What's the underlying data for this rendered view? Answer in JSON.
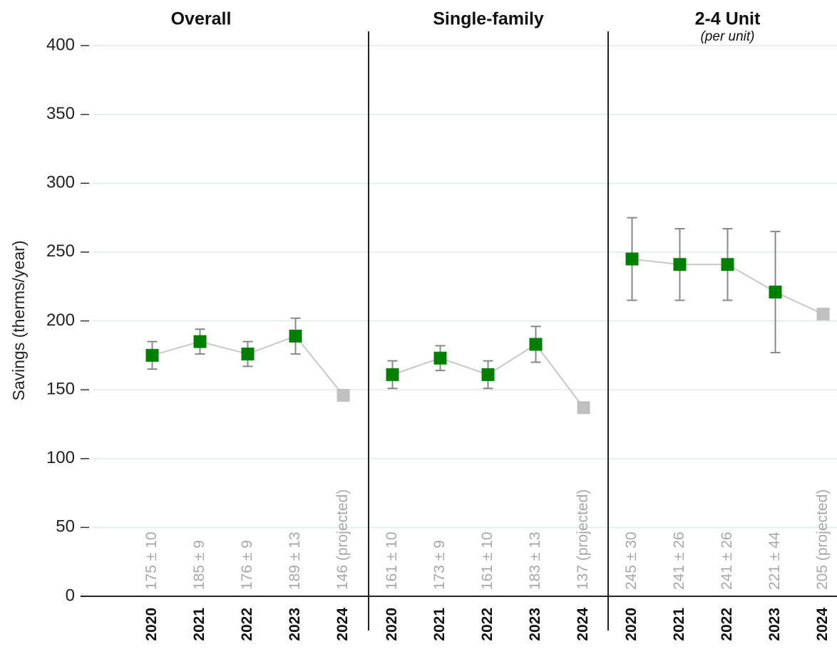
{
  "chart_data": {
    "type": "errorbar",
    "ylabel": "Savings (therms/year)",
    "ylim": [
      0,
      400
    ],
    "yticks": [
      0,
      50,
      100,
      150,
      200,
      250,
      300,
      350,
      400
    ],
    "grid": true,
    "categories": [
      "2020",
      "2021",
      "2022",
      "2023",
      "2024"
    ],
    "point_colors": [
      "#008000",
      "#008000",
      "#008000",
      "#008000",
      "#c0c0c0"
    ],
    "line_color": "#c8c8c8",
    "errorbar_color": "#888888",
    "panels": [
      {
        "title": "Overall",
        "values": [
          175,
          185,
          176,
          189,
          146
        ],
        "errors": [
          10,
          9,
          9,
          13,
          null
        ],
        "value_labels": [
          "175 ± 10",
          "185 ± 9",
          "176 ± 9",
          "189 ± 13",
          "146 (projected)"
        ]
      },
      {
        "title": "Single-family",
        "values": [
          161,
          173,
          161,
          183,
          137
        ],
        "errors": [
          10,
          9,
          10,
          13,
          null
        ],
        "value_labels": [
          "161 ± 10",
          "173 ± 9",
          "161 ± 10",
          "183 ± 13",
          "137 (projected)"
        ]
      },
      {
        "title": "2-4 Unit",
        "subtitle": "(per unit)",
        "values": [
          245,
          241,
          241,
          221,
          205
        ],
        "errors": [
          30,
          26,
          26,
          44,
          null
        ],
        "value_labels": [
          "245 ± 30",
          "241 ± 26",
          "241 ± 26",
          "221 ± 44",
          "205 (projected)"
        ]
      }
    ]
  }
}
